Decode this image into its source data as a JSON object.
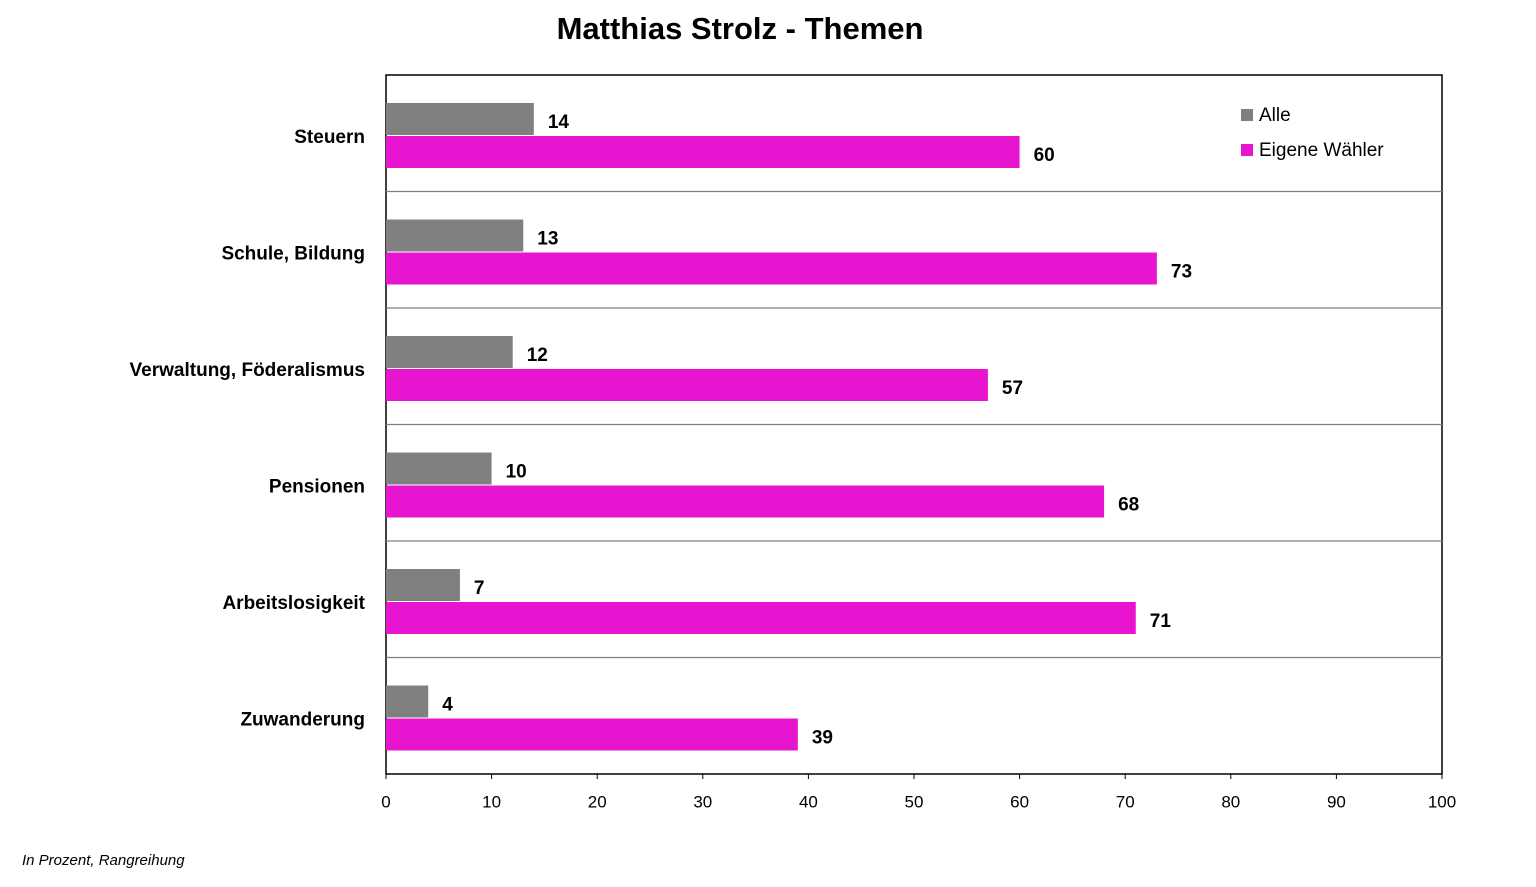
{
  "chart_data": {
    "type": "bar",
    "orientation": "horizontal",
    "title": "Matthias Strolz - Themen",
    "categories": [
      "Steuern",
      "Schule, Bildung",
      "Verwaltung, Föderalismus",
      "Pensionen",
      "Arbeitslosigkeit",
      "Zuwanderung"
    ],
    "series": [
      {
        "name": "Alle",
        "color": "#808080",
        "values": [
          14,
          13,
          12,
          10,
          7,
          4
        ]
      },
      {
        "name": "Eigene Wähler",
        "color": "#e815d0",
        "values": [
          60,
          73,
          57,
          68,
          71,
          39
        ]
      }
    ],
    "xlim": [
      0,
      100
    ],
    "xticks": [
      0,
      10,
      20,
      30,
      40,
      50,
      60,
      70,
      80,
      90,
      100
    ],
    "legend": "upper right",
    "footnote": "In Prozent, Rangreihung"
  }
}
